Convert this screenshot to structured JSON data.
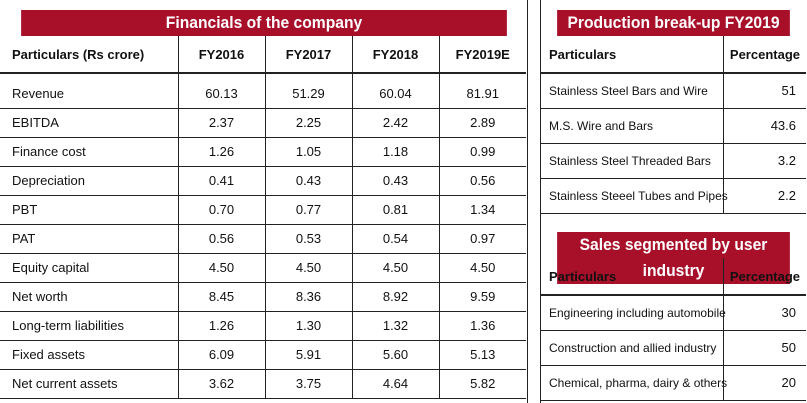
{
  "financials": {
    "title": "Financials of the company",
    "columns": [
      "Particulars (Rs crore)",
      "FY2016",
      "FY2017",
      "FY2018",
      "FY2019E"
    ],
    "rows": [
      {
        "label": "Revenue",
        "values": [
          "60.13",
          "51.29",
          "60.04",
          "81.91"
        ]
      },
      {
        "label": "EBITDA",
        "values": [
          "2.37",
          "2.25",
          "2.42",
          "2.89"
        ]
      },
      {
        "label": "Finance cost",
        "values": [
          "1.26",
          "1.05",
          "1.18",
          "0.99"
        ]
      },
      {
        "label": "Depreciation",
        "values": [
          "0.41",
          "0.43",
          "0.43",
          "0.56"
        ]
      },
      {
        "label": "PBT",
        "values": [
          "0.70",
          "0.77",
          "0.81",
          "1.34"
        ]
      },
      {
        "label": "PAT",
        "values": [
          "0.56",
          "0.53",
          "0.54",
          "0.97"
        ]
      },
      {
        "label": "Equity capital",
        "values": [
          "4.50",
          "4.50",
          "4.50",
          "4.50"
        ]
      },
      {
        "label": "Net worth",
        "values": [
          "8.45",
          "8.36",
          "8.92",
          "9.59"
        ]
      },
      {
        "label": "Long-term liabilities",
        "values": [
          "1.26",
          "1.30",
          "1.32",
          "1.36"
        ]
      },
      {
        "label": "Fixed assets",
        "values": [
          "6.09",
          "5.91",
          "5.60",
          "5.13"
        ]
      },
      {
        "label": "Net current assets",
        "values": [
          "3.62",
          "3.75",
          "4.64",
          "5.82"
        ]
      }
    ]
  },
  "production": {
    "title": "Production break-up FY2019",
    "columns": [
      "Particulars",
      "Percentage"
    ],
    "rows": [
      {
        "label": "Stainless Steel Bars and Wire",
        "value": "51"
      },
      {
        "label": "M.S. Wire and Bars",
        "value": "43.6"
      },
      {
        "label": "Stainless Steel Threaded Bars",
        "value": "3.2"
      },
      {
        "label": "Stainless Steeel Tubes and Pipes",
        "value": "2.2"
      }
    ]
  },
  "sales": {
    "title": "Sales segmented by user industry",
    "columns": [
      "Particulars",
      "Percentage"
    ],
    "rows": [
      {
        "label": "Engineering  including automobile",
        "value": "30"
      },
      {
        "label": "Construction and allied industry",
        "value": "50"
      },
      {
        "label": "Chemical, pharma, dairy & others",
        "value": "20"
      }
    ]
  },
  "colors": {
    "title_bg": "#a8102a",
    "title_text": "#ffffff"
  }
}
